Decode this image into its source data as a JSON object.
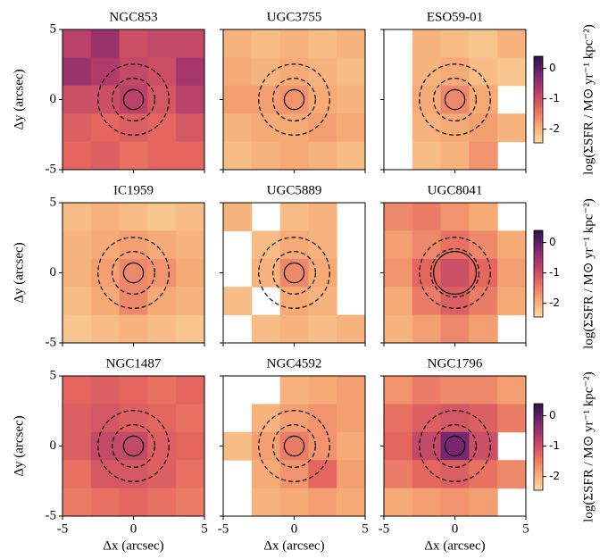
{
  "chart_data": {
    "type": "image-grid",
    "xlabel": "Δx (arcsec)",
    "ylabel": "Δy (arcsec)",
    "xlim": [
      -5,
      5
    ],
    "xticks": [
      -5,
      0,
      5
    ],
    "ylim": [
      -5,
      5
    ],
    "yticks": [
      -5,
      0,
      5
    ],
    "clim": [
      -2.45,
      0.4
    ],
    "cticks": [
      -2,
      -1,
      0
    ],
    "colorbar_label": "log(ΣSFR / M⊙ yr⁻¹ kpc⁻²)",
    "colormap": [
      "#fbdca3",
      "#f6a874",
      "#e5675f",
      "#b53d6a",
      "#74256f",
      "#2b1048"
    ],
    "panels": [
      {
        "title": "NGC853",
        "apertures": [
          0.7,
          1.5,
          2.5
        ],
        "values": [
          [
            -0.8,
            -0.5,
            -1.0,
            -0.9,
            -0.9
          ],
          [
            -0.5,
            -0.7,
            -0.9,
            -1.0,
            -0.6
          ],
          [
            -1.0,
            -1.0,
            -0.8,
            -1.1,
            -0.8
          ],
          [
            -1.2,
            -1.3,
            -1.2,
            -1.3,
            -1.1
          ],
          [
            -1.3,
            -1.2,
            -1.4,
            -1.3,
            -1.3
          ]
        ]
      },
      {
        "title": "UGC3755",
        "apertures": [
          0.7,
          1.5,
          2.5
        ],
        "values": [
          [
            -2.0,
            -2.1,
            -2.0,
            -2.1,
            -2.0
          ],
          [
            -1.9,
            -2.0,
            -1.9,
            -2.0,
            -2.1
          ],
          [
            -1.8,
            -1.8,
            -1.7,
            -1.9,
            -2.0
          ],
          [
            -2.0,
            -1.9,
            -1.9,
            -1.8,
            -1.9
          ],
          [
            -2.1,
            -2.0,
            -1.9,
            -2.0,
            -2.1
          ]
        ]
      },
      {
        "title": "ESO59-01",
        "apertures": [
          0.7,
          1.5,
          2.5
        ],
        "values": [
          [
            null,
            -2.0,
            -2.1,
            -2.2,
            -2.0
          ],
          [
            null,
            -2.0,
            -1.9,
            -2.1,
            -2.2
          ],
          [
            null,
            -1.9,
            -1.6,
            -1.9,
            null
          ],
          [
            null,
            -2.0,
            -1.9,
            -1.8,
            -2.0
          ],
          [
            null,
            -2.1,
            -2.0,
            -1.7,
            null
          ]
        ]
      },
      {
        "title": "IC1959",
        "apertures": [
          0.7,
          1.5,
          2.5
        ],
        "values": [
          [
            -2.1,
            -2.0,
            -2.1,
            -2.2,
            -2.1
          ],
          [
            -2.0,
            -1.9,
            -1.8,
            -1.9,
            -2.0
          ],
          [
            -2.0,
            -1.8,
            -1.6,
            -1.7,
            -1.9
          ],
          [
            -2.1,
            -1.9,
            -1.6,
            -1.9,
            -2.0
          ],
          [
            -2.2,
            -2.1,
            -2.0,
            -2.1,
            -2.2
          ]
        ]
      },
      {
        "title": "UGC5889",
        "apertures": [
          0.7,
          1.5,
          2.5
        ],
        "values": [
          [
            -2.0,
            null,
            -2.1,
            -2.0,
            null
          ],
          [
            null,
            -2.1,
            -1.9,
            -2.0,
            null
          ],
          [
            null,
            -2.0,
            -1.6,
            -1.9,
            null
          ],
          [
            -2.1,
            null,
            -1.9,
            -2.0,
            null
          ],
          [
            null,
            -2.1,
            -2.0,
            -2.1,
            -2.0
          ]
        ]
      },
      {
        "title": "UGC8041",
        "apertures": [
          1.5,
          1.7,
          2.5
        ],
        "values": [
          [
            -1.6,
            -1.5,
            -1.7,
            -1.9,
            null
          ],
          [
            -1.8,
            -1.6,
            -1.4,
            -1.6,
            -1.9
          ],
          [
            -1.7,
            -1.3,
            -1.0,
            -1.3,
            -1.8
          ],
          [
            -1.9,
            -1.5,
            -1.2,
            -1.5,
            -1.9
          ],
          [
            -2.0,
            -1.8,
            -1.6,
            -1.8,
            null
          ]
        ]
      },
      {
        "title": "NGC1487",
        "apertures": [
          0.7,
          1.5,
          2.5
        ],
        "values": [
          [
            -1.3,
            -1.2,
            -1.3,
            -1.4,
            -1.3
          ],
          [
            -1.2,
            -1.1,
            -1.2,
            -1.3,
            -1.4
          ],
          [
            -1.2,
            -0.9,
            -0.9,
            -1.2,
            -1.3
          ],
          [
            -1.4,
            -1.1,
            -1.1,
            -1.2,
            -1.4
          ],
          [
            -1.5,
            -1.4,
            -1.3,
            -1.4,
            -1.5
          ]
        ]
      },
      {
        "title": "NGC4592",
        "apertures": [
          0.7,
          1.5,
          2.5
        ],
        "values": [
          [
            null,
            null,
            -2.0,
            -1.9,
            -1.8
          ],
          [
            null,
            -2.0,
            -1.8,
            -1.7,
            -1.8
          ],
          [
            -2.1,
            -1.8,
            -1.5,
            -1.7,
            -1.9
          ],
          [
            null,
            -1.9,
            -1.7,
            -1.3,
            -1.8
          ],
          [
            null,
            -2.0,
            -1.9,
            -1.8,
            -1.9
          ]
        ]
      },
      {
        "title": "NGC1796",
        "apertures": [
          0.7,
          1.5,
          2.5
        ],
        "values": [
          [
            -1.7,
            -1.5,
            -1.6,
            -1.6,
            -1.8
          ],
          [
            -1.4,
            -1.2,
            -1.1,
            -1.2,
            -1.5
          ],
          [
            -1.3,
            -0.9,
            -0.2,
            -1.0,
            null
          ],
          [
            -1.5,
            -1.3,
            -1.2,
            -1.4,
            -1.6
          ],
          [
            -1.9,
            -1.8,
            -1.7,
            -1.8,
            null
          ]
        ]
      }
    ]
  }
}
